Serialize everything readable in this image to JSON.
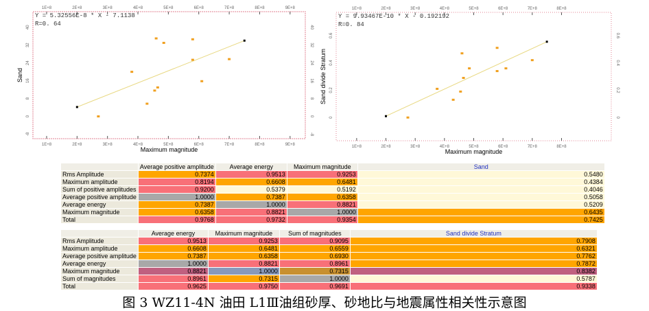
{
  "chart_data": [
    {
      "type": "scatter",
      "equation": "Y = 5.32556E-8 * X - 7.1138",
      "r_label": "R=0. 64",
      "xlabel": "Maximum magnitude",
      "ylabel": "Sand",
      "xlim": [
        55000000,
        950000000
      ],
      "ylim": [
        -10,
        47
      ],
      "xticks": [
        100000000,
        200000000,
        300000000,
        400000000,
        500000000,
        600000000,
        700000000,
        800000000,
        900000000
      ],
      "xtick_labels": [
        "1E+8",
        "2E+8",
        "3E+8",
        "4E+8",
        "5E+8",
        "6E+8",
        "7E+8",
        "8E+8",
        "9E+8"
      ],
      "yticks": [
        -8,
        0,
        8,
        16,
        24,
        32,
        40
      ],
      "ytick_labels": [
        "-8",
        "0",
        "8",
        "16",
        "24",
        "32",
        "40"
      ],
      "points": [
        [
          270000000,
          0
        ],
        [
          380000000,
          20
        ],
        [
          430000000,
          5.7
        ],
        [
          455000000,
          11.6
        ],
        [
          465000000,
          13
        ],
        [
          460000000,
          35
        ],
        [
          485000000,
          33
        ],
        [
          580000000,
          34.6
        ],
        [
          580000000,
          25.4
        ],
        [
          610000000,
          15.8
        ],
        [
          700000000,
          25.7
        ]
      ],
      "fit_line": [
        [
          200000000,
          4.2
        ],
        [
          750000000,
          34
        ]
      ]
    },
    {
      "type": "scatter",
      "equation": "Y = 9.93467E-10 * X - 0.192192",
      "r_label": "R=0. 84",
      "xlabel": "Maximum magnitude",
      "ylabel": "Sand divide Stratum",
      "xlim": [
        30000000,
        970000000
      ],
      "ylim": [
        -0.17,
        0.77
      ],
      "xticks": [
        100000000,
        200000000,
        300000000,
        400000000,
        500000000,
        600000000,
        700000000,
        800000000
      ],
      "xtick_labels": [
        "1E+8",
        "2E+8",
        "3E+8",
        "4E+8",
        "5E+8",
        "6E+8",
        "7E+8",
        "8E+8"
      ],
      "yticks": [
        0,
        0.2,
        0.4,
        0.6
      ],
      "ytick_labels": [
        "0",
        "0.2",
        "0.4",
        "0.6"
      ],
      "points": [
        [
          275000000,
          0
        ],
        [
          375000000,
          0.21
        ],
        [
          430000000,
          0.13
        ],
        [
          455000000,
          0.19
        ],
        [
          460000000,
          0.47
        ],
        [
          465000000,
          0.29
        ],
        [
          485000000,
          0.36
        ],
        [
          580000000,
          0.34
        ],
        [
          580000000,
          0.51
        ],
        [
          610000000,
          0.36
        ],
        [
          700000000,
          0.42
        ]
      ],
      "fit_line": [
        [
          200000000,
          0.01
        ],
        [
          750000000,
          0.555
        ]
      ]
    }
  ],
  "table1": {
    "headers": [
      "",
      "Average positive amplitude",
      "Average energy",
      "Maximum magnitude",
      "Sand"
    ],
    "rows": [
      {
        "label": "Rms Amplitude",
        "values": [
          "0.7374",
          "0.9513",
          "0.9253",
          "0.5480"
        ],
        "colors": [
          "#ffa500",
          "#f87078",
          "#f87078",
          "#fff8d8"
        ]
      },
      {
        "label": "Maximum amplitude",
        "values": [
          "0.8194",
          "0.6608",
          "0.6481",
          "0.4384"
        ],
        "colors": [
          "#f87078",
          "#ffa500",
          "#ffa500",
          "#fff8d8"
        ]
      },
      {
        "label": "Sum of positive amplitudes",
        "values": [
          "0.9200",
          "0.5379",
          "0.5192",
          "0.4046"
        ],
        "colors": [
          "#f87078",
          "#fff8d8",
          "#fff8d8",
          "#fff8d8"
        ]
      },
      {
        "label": "Average positive amplitude",
        "values": [
          "1.0000",
          "0.7387",
          "0.6358",
          "0.5058"
        ],
        "colors": [
          "#a8a8a8",
          "#ffa500",
          "#ffa500",
          "#fff8d8"
        ]
      },
      {
        "label": "Average energy",
        "values": [
          "0.7387",
          "1.0000",
          "0.8821",
          "0.5209"
        ],
        "colors": [
          "#ffa500",
          "#a8a8a8",
          "#f87078",
          "#fff8d8"
        ]
      },
      {
        "label": "Maximum magnitude",
        "values": [
          "0.6358",
          "0.8821",
          "1.0000",
          "0.6435"
        ],
        "colors": [
          "#ffa500",
          "#f87078",
          "#a8a8a8",
          "#ffa500"
        ]
      },
      {
        "label": "Total",
        "values": [
          "0.9768",
          "0.9732",
          "0.9354",
          "0.7425"
        ],
        "colors": [
          "#f87078",
          "#f87078",
          "#f87078",
          "#ffa500"
        ]
      }
    ]
  },
  "table2": {
    "headers": [
      "",
      "Average energy",
      "Maximum magnitude",
      "Sum of magnitudes",
      "Sand divide Stratum"
    ],
    "rows": [
      {
        "label": "Rms Amplitude",
        "values": [
          "0.9513",
          "0.9253",
          "0.9095",
          "0.7908"
        ],
        "colors": [
          "#f87078",
          "#f87078",
          "#f87078",
          "#ffa500"
        ]
      },
      {
        "label": "Maximum amplitude",
        "values": [
          "0.6608",
          "0.6481",
          "0.6559",
          "0.6321"
        ],
        "colors": [
          "#ffa500",
          "#ffa500",
          "#ffa500",
          "#ffa500"
        ]
      },
      {
        "label": "Average positive amplitude",
        "values": [
          "0.7387",
          "0.6358",
          "0.6930",
          "0.7762"
        ],
        "colors": [
          "#ffa500",
          "#ffa500",
          "#ffa500",
          "#ffa500"
        ]
      },
      {
        "label": "Average energy",
        "values": [
          "1.0000",
          "0.8821",
          "0.8961",
          "0.7872"
        ],
        "colors": [
          "#a8a8a8",
          "#f87078",
          "#f87078",
          "#ffa500"
        ]
      },
      {
        "label": "Maximum magnitude",
        "values": [
          "0.8821",
          "1.0000",
          "0.7315",
          "0.8382"
        ],
        "colors": [
          "#c06080",
          "#8899bb",
          "#c89030",
          "#c06080"
        ]
      },
      {
        "label": "Sum of magnitudes",
        "values": [
          "0.8961",
          "0.7315",
          "1.0000",
          "0.5787"
        ],
        "colors": [
          "#f87078",
          "#ffa500",
          "#a8a8a8",
          "#fff8d8"
        ]
      },
      {
        "label": "Total",
        "values": [
          "0.9625",
          "0.9750",
          "0.9691",
          "0.9338"
        ],
        "colors": [
          "#f87078",
          "#f87078",
          "#f87078",
          "#f87078"
        ]
      }
    ]
  },
  "caption": "图 3 WZ11-4N 油田 L1Ⅲ油组砂厚、砂地比与地震属性相关性示意图"
}
